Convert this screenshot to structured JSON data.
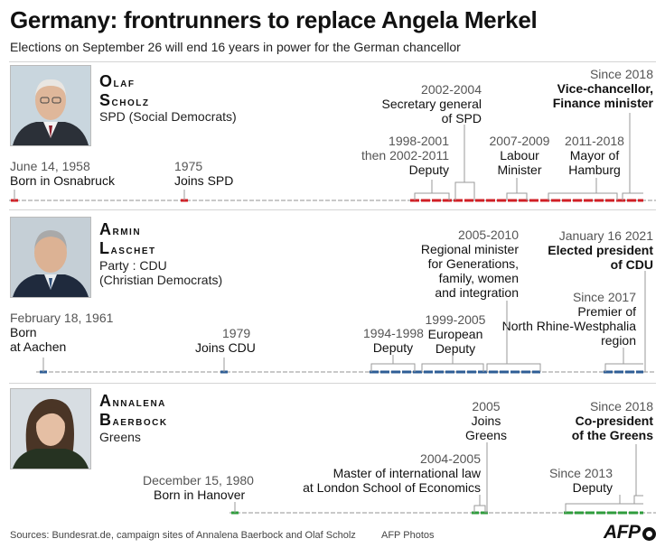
{
  "header": {
    "title": "Germany: frontrunners to replace Angela Merkel",
    "subtitle": "Elections on September 26 will end 16 years in power for the German chancellor"
  },
  "candidates": [
    {
      "first": "Olaf",
      "last": "Scholz",
      "party": [
        "SPD (Social Democrats)"
      ],
      "photo_icon": "portrait-man-glasses-icon",
      "color": "#d01f26",
      "events": [
        {
          "date": "June 14, 1958",
          "text": [
            "Born in Osnabruck"
          ]
        },
        {
          "date": "1975",
          "text": [
            "Joins SPD"
          ]
        },
        {
          "date": "1998-2001\nthen 2002-2011",
          "text": [
            "Deputy"
          ]
        },
        {
          "date": "2002-2004",
          "text": [
            "Secretary general",
            "of SPD"
          ]
        },
        {
          "date": "2007-2009",
          "text": [
            "Labour",
            "Minister"
          ]
        },
        {
          "date": "2011-2018",
          "text": [
            "Mayor of",
            "Hamburg"
          ]
        },
        {
          "date": "Since 2018",
          "text": [
            "Vice-chancellor,",
            "Finance minister"
          ]
        }
      ]
    },
    {
      "first": "Armin",
      "last": "Laschet",
      "party": [
        "Party : CDU",
        "(Christian Democrats)"
      ],
      "photo_icon": "portrait-man-grey-icon",
      "color": "#2e5d95",
      "events": [
        {
          "date": "February 18, 1961",
          "text": [
            "Born",
            "at Aachen"
          ]
        },
        {
          "date": "1979",
          "text": [
            "Joins CDU"
          ]
        },
        {
          "date": "1994-1998",
          "text": [
            "Deputy"
          ]
        },
        {
          "date": "1999-2005",
          "text": [
            "European",
            "Deputy"
          ]
        },
        {
          "date": "2005-2010",
          "text": [
            "Regional minister",
            "for Generations,",
            "family, women",
            "and integration"
          ]
        },
        {
          "date": "Since 2017",
          "text": [
            "Premier of",
            "North Rhine-Westphalia",
            "region"
          ]
        },
        {
          "date": "January 16 2021",
          "text": [
            "Elected president",
            "of CDU"
          ]
        }
      ]
    },
    {
      "first": "Annalena",
      "last": "Baerbock",
      "party": [
        "Greens"
      ],
      "photo_icon": "portrait-woman-icon",
      "color": "#2f9c3c",
      "events": [
        {
          "date": "December 15, 1980",
          "text": [
            "Born in Hanover"
          ]
        },
        {
          "date": "2004-2005",
          "text": [
            "Master of international law",
            "at London School of Economics"
          ]
        },
        {
          "date": "2005",
          "text": [
            "Joins",
            "Greens"
          ]
        },
        {
          "date": "Since 2013",
          "text": [
            "Deputy"
          ]
        },
        {
          "date": "Since 2018",
          "text": [
            "Co-president",
            "of the Greens"
          ]
        }
      ]
    }
  ],
  "footer": {
    "sources": "Sources: Bundesrat.de, campaign sites of Annalena Baerbock and Olaf Scholz",
    "credit": "AFP Photos",
    "logo": "AFP"
  }
}
